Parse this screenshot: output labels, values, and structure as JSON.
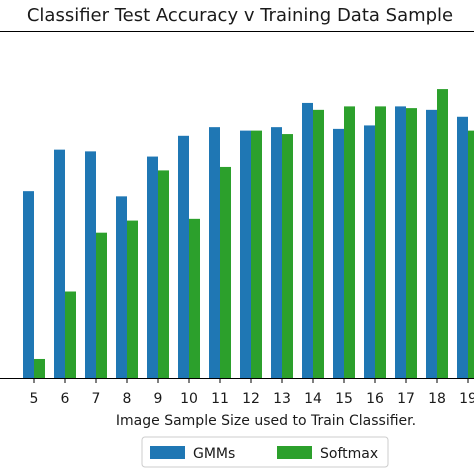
{
  "chart_data": {
    "type": "bar",
    "title": "Classifier Test Accuracy v Training Data Sample",
    "xlabel": "Image Sample Size used to Train Classifier.",
    "ylabel": "",
    "categories": [
      "5",
      "6",
      "7",
      "8",
      "9",
      "10",
      "11",
      "12",
      "13",
      "14",
      "15",
      "16",
      "17",
      "18",
      "19"
    ],
    "series": [
      {
        "name": "GMMs",
        "color": "#1f77b4",
        "values": [
          0.54,
          0.66,
          0.655,
          0.525,
          0.64,
          0.7,
          0.725,
          0.715,
          0.725,
          0.795,
          0.72,
          0.73,
          0.785,
          0.775,
          0.755
        ]
      },
      {
        "name": "Softmax",
        "color": "#2ca02c",
        "values": [
          0.055,
          0.25,
          0.42,
          0.455,
          0.6,
          0.46,
          0.61,
          0.715,
          0.705,
          0.775,
          0.785,
          0.785,
          0.78,
          0.835,
          0.715
        ]
      }
    ],
    "ylim": [
      0,
      1
    ],
    "grid": false,
    "legend": "bottom"
  }
}
